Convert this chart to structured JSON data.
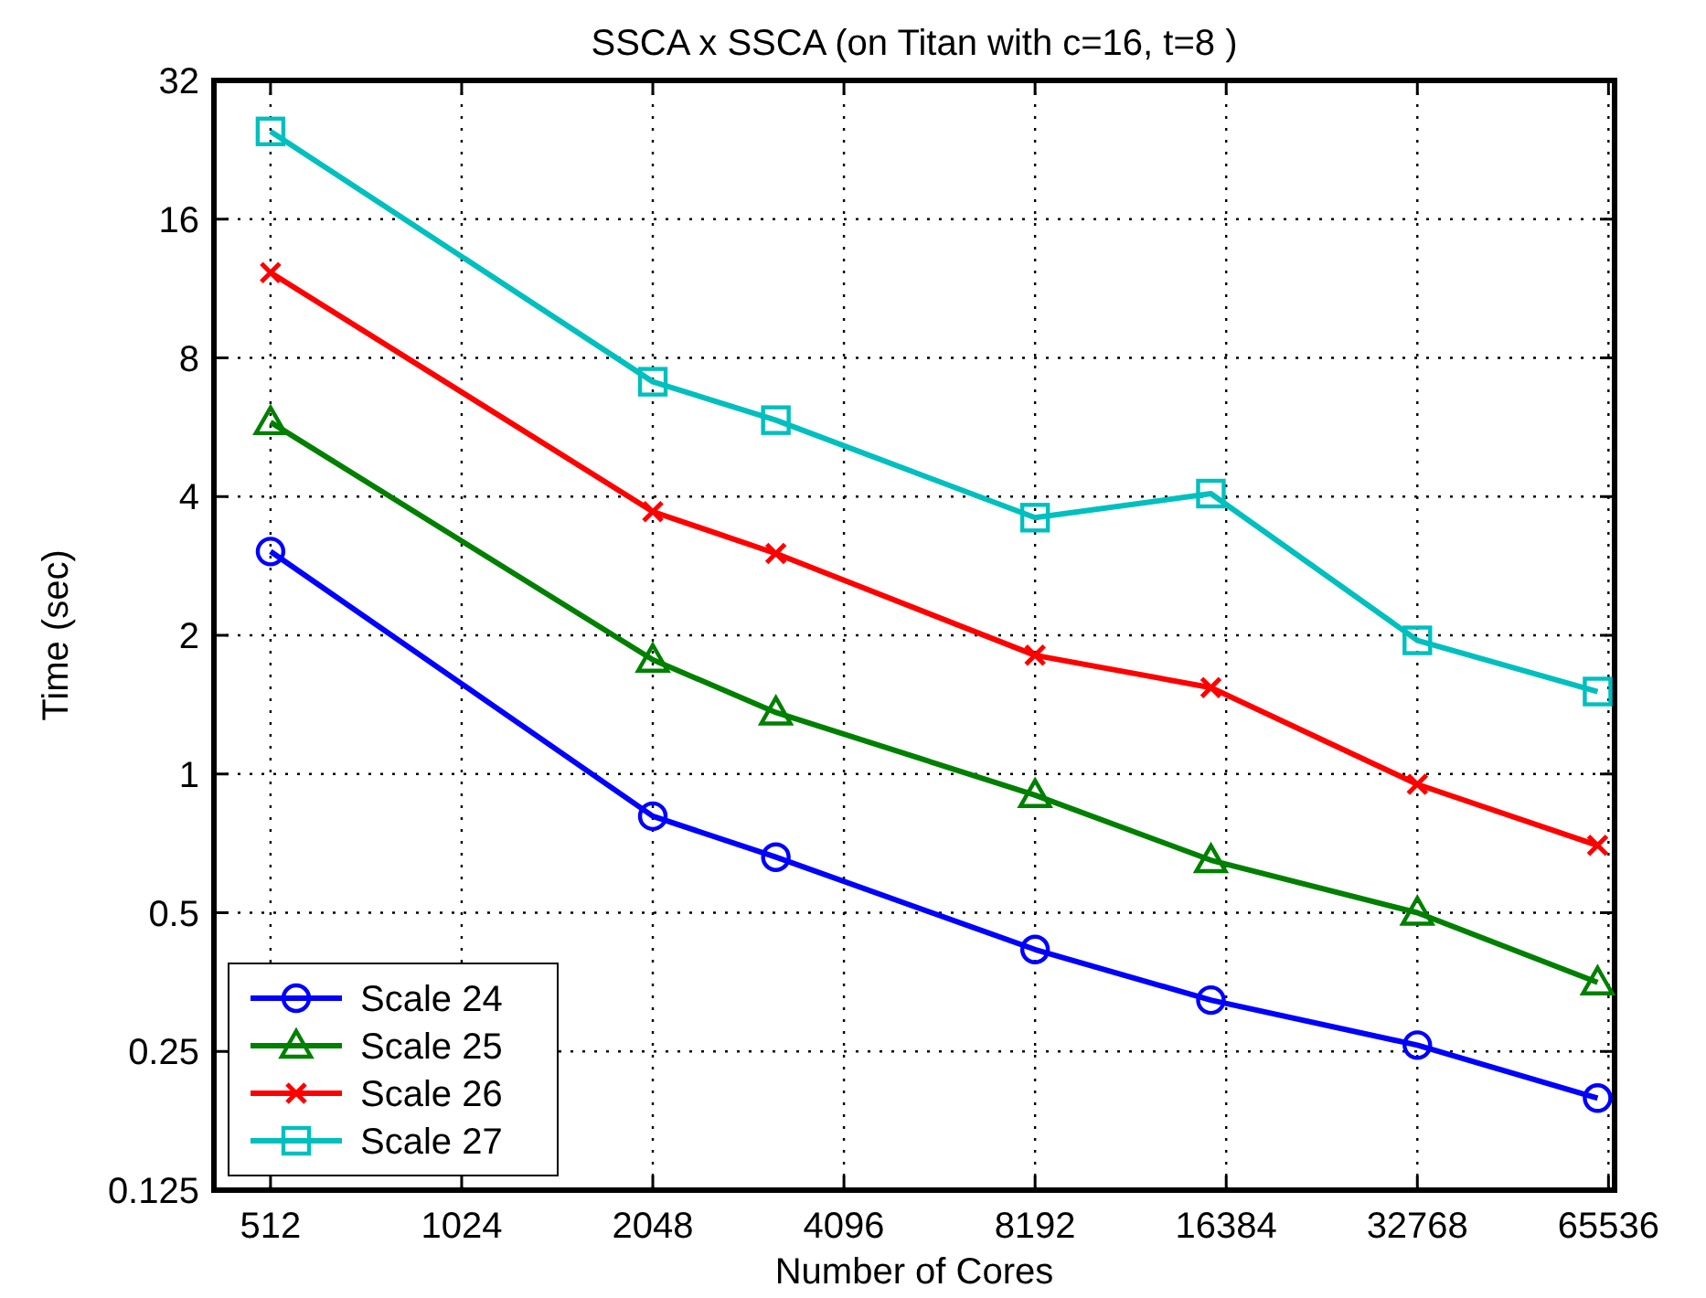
{
  "chart_data": {
    "type": "line",
    "title": "SSCA x SSCA (on Titan with c=16, t=8 )",
    "xlabel": "Number of Cores",
    "ylabel": "Time (sec)",
    "log": "xy",
    "grid": true,
    "legend": "bottom left",
    "xlim": [
      417,
      67000
    ],
    "xticks": [
      512,
      1024,
      2048,
      4096,
      8192,
      16384,
      32768,
      65536
    ],
    "ylim": [
      0.125,
      32
    ],
    "yticks": [
      0.125,
      0.25,
      0.5,
      1,
      2,
      4,
      8,
      16,
      32
    ],
    "x": [
      512,
      2048,
      3200,
      8192,
      15500,
      32768,
      63000
    ],
    "line_style": "solid",
    "series": [
      {
        "name": "Scale 24",
        "color": "#0000ff",
        "marker": "circle",
        "values": [
          3.04,
          0.81,
          0.66,
          0.416,
          0.323,
          0.258,
          0.198
        ]
      },
      {
        "name": "Scale 25",
        "color": "#008000",
        "marker": "triangle",
        "values": [
          5.8,
          1.77,
          1.36,
          0.9,
          0.65,
          0.5,
          0.353
        ]
      },
      {
        "name": "Scale 26",
        "color": "#ff0000",
        "marker": "cross",
        "values": [
          12.25,
          3.71,
          3.01,
          1.81,
          1.54,
          0.95,
          0.7
        ]
      },
      {
        "name": "Scale 27",
        "color": "#00bfbf",
        "marker": "square",
        "values": [
          24.8,
          7.1,
          5.86,
          3.6,
          4.06,
          1.95,
          1.51
        ]
      }
    ]
  }
}
